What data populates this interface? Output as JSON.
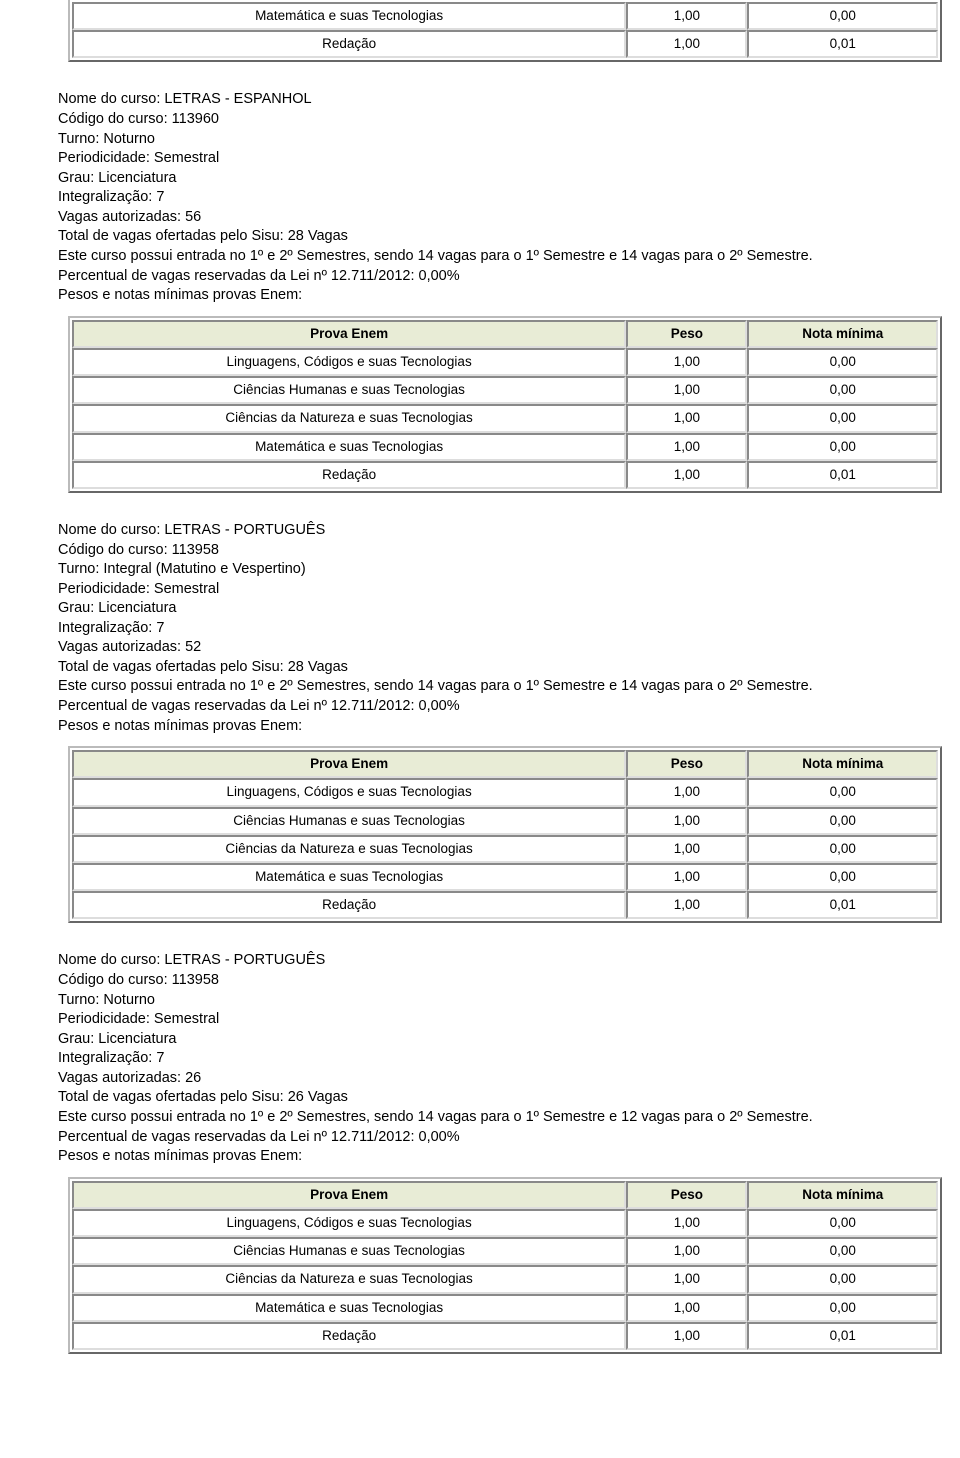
{
  "colors": {
    "header_bg": "#e8ecd6",
    "border_light": "#dddddd",
    "border_dark": "#bbbbbb",
    "text": "#000000",
    "page_bg": "#ffffff"
  },
  "enem_headers": {
    "prova": "Prova Enem",
    "peso": "Peso",
    "nota": "Nota mínima"
  },
  "top_partial_rows": [
    {
      "prova": "Matemática e suas Tecnologias",
      "peso": "1,00",
      "nota": "0,00"
    },
    {
      "prova": "Redação",
      "peso": "1,00",
      "nota": "0,01"
    }
  ],
  "common_rows": [
    {
      "prova": "Linguagens, Códigos e suas Tecnologias",
      "peso": "1,00",
      "nota": "0,00"
    },
    {
      "prova": "Ciências Humanas e suas Tecnologias",
      "peso": "1,00",
      "nota": "0,00"
    },
    {
      "prova": "Ciências da Natureza e suas Tecnologias",
      "peso": "1,00",
      "nota": "0,00"
    },
    {
      "prova": "Matemática e suas Tecnologias",
      "peso": "1,00",
      "nota": "0,00"
    },
    {
      "prova": "Redação",
      "peso": "1,00",
      "nota": "0,01"
    }
  ],
  "courses": [
    {
      "nome": "Nome do curso: LETRAS - ESPANHOL",
      "codigo": "Código do curso: 113960",
      "turno": "Turno: Noturno",
      "periodicidade": "Periodicidade: Semestral",
      "grau": "Grau: Licenciatura",
      "integralizacao": "Integralização: 7",
      "vagas_aut": "Vagas autorizadas: 56",
      "total_sisu": "Total de vagas ofertadas pelo Sisu: 28 Vagas",
      "entrada": "Este curso possui entrada no 1º e 2º Semestres, sendo 14 vagas para o 1º Semestre e 14 vagas para o 2º Semestre.",
      "percentual": "Percentual de vagas reservadas da Lei nº 12.711/2012: 0,00%",
      "pesos": "Pesos e notas mínimas provas Enem:"
    },
    {
      "nome": "Nome do curso: LETRAS - PORTUGUÊS",
      "codigo": "Código do curso: 113958",
      "turno": "Turno: Integral (Matutino e Vespertino)",
      "periodicidade": "Periodicidade: Semestral",
      "grau": "Grau: Licenciatura",
      "integralizacao": "Integralização: 7",
      "vagas_aut": "Vagas autorizadas: 52",
      "total_sisu": "Total de vagas ofertadas pelo Sisu: 28 Vagas",
      "entrada": "Este curso possui entrada no 1º e 2º Semestres, sendo 14 vagas para o 1º Semestre e 14 vagas para o 2º Semestre.",
      "percentual": "Percentual de vagas reservadas da Lei nº 12.711/2012: 0,00%",
      "pesos": "Pesos e notas mínimas provas Enem:"
    },
    {
      "nome": "Nome do curso: LETRAS - PORTUGUÊS",
      "codigo": "Código do curso: 113958",
      "turno": "Turno: Noturno",
      "periodicidade": "Periodicidade: Semestral",
      "grau": "Grau: Licenciatura",
      "integralizacao": "Integralização: 7",
      "vagas_aut": "Vagas autorizadas: 26",
      "total_sisu": "Total de vagas ofertadas pelo Sisu: 26 Vagas",
      "entrada": "Este curso possui entrada no 1º e 2º Semestres, sendo 14 vagas para o 1º Semestre e 12 vagas para o 2º Semestre.",
      "percentual": "Percentual de vagas reservadas da Lei nº 12.711/2012: 0,00%",
      "pesos": "Pesos e notas mínimas provas Enem:"
    }
  ]
}
